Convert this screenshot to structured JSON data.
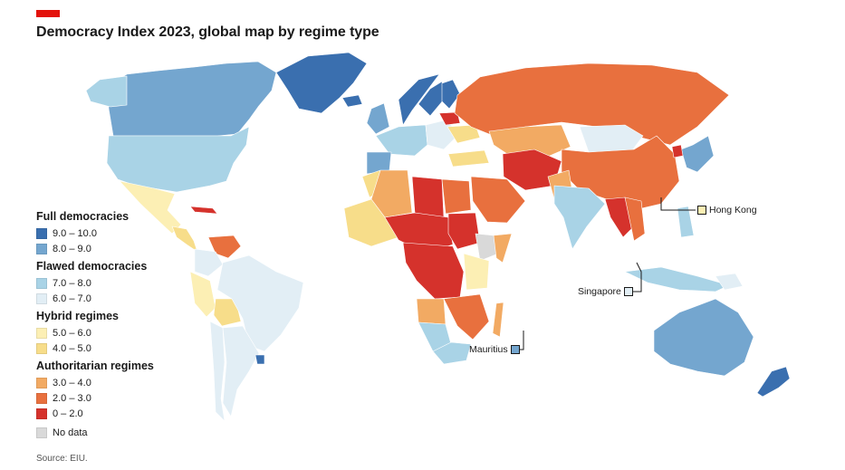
{
  "header": {
    "title": "Democracy Index 2023, global map by regime type",
    "brand_color": "#e3120b"
  },
  "legend": {
    "groups": [
      {
        "title": "Full democracies",
        "items": [
          {
            "label": "9.0 – 10.0",
            "color": "#3a6faf"
          },
          {
            "label": "8.0 – 9.0",
            "color": "#74a6cf"
          }
        ]
      },
      {
        "title": "Flawed democracies",
        "items": [
          {
            "label": "7.0 – 8.0",
            "color": "#a9d3e6"
          },
          {
            "label": "6.0 – 7.0",
            "color": "#e2eef5"
          }
        ]
      },
      {
        "title": "Hybrid regimes",
        "items": [
          {
            "label": "5.0 – 6.0",
            "color": "#fcefb4"
          },
          {
            "label": "4.0 – 5.0",
            "color": "#f7dd8a"
          }
        ]
      },
      {
        "title": "Authoritarian regimes",
        "items": [
          {
            "label": "3.0 – 4.0",
            "color": "#f2aa63"
          },
          {
            "label": "2.0 – 3.0",
            "color": "#e8703e"
          },
          {
            "label": "0 – 2.0",
            "color": "#d5322c"
          }
        ]
      },
      {
        "title": "",
        "items": [
          {
            "label": "No data",
            "color": "#d9d9d9"
          }
        ]
      }
    ]
  },
  "callouts": {
    "hong_kong": {
      "label": "Hong Kong",
      "color": "#fcefb4"
    },
    "singapore": {
      "label": "Singapore",
      "color": "#e2eef5"
    },
    "mauritius": {
      "label": "Mauritius",
      "color": "#74a6cf"
    }
  },
  "source": "Source: EIU."
}
